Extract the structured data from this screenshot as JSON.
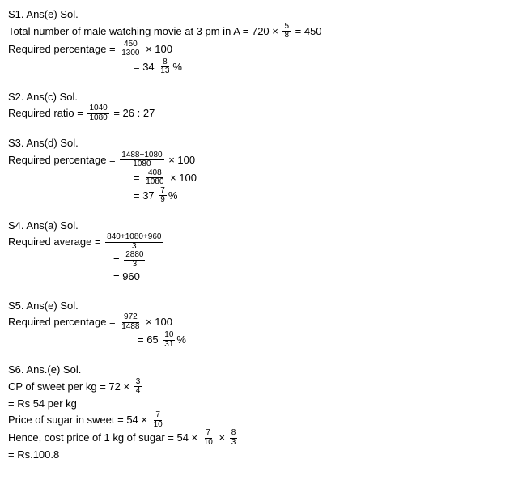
{
  "s1": {
    "header": "S1.  Ans(e) Sol.",
    "line1_a": "Total number of male watching movie at 3 pm in A = 720 × ",
    "f1n": "5",
    "f1d": "8",
    "line1_b": " = 450",
    "line2_a": "Required percentage = ",
    "f2n": "450",
    "f2d": "1300",
    "line2_b": " × 100",
    "line3_a": "= 34 ",
    "f3n": "8",
    "f3d": "13",
    "line3_b": "%"
  },
  "s2": {
    "header": "S2. Ans(c) Sol.",
    "line1_a": "Required ratio = ",
    "f1n": "1040",
    "f1d": "1080",
    "line1_b": " = 26 : 27"
  },
  "s3": {
    "header": "S3. Ans(d) Sol.",
    "line1_a": "Required percentage = ",
    "f1n": "1488−1080",
    "f1d": "1080",
    "line1_b": " × 100",
    "line2_a": "= ",
    "f2n": "408",
    "f2d": "1080",
    "line2_b": " × 100",
    "line3_a": "= 37 ",
    "f3n": "7",
    "f3d": "9",
    "line3_b": "%"
  },
  "s4": {
    "header": "S4. Ans(a) Sol.",
    "line1_a": "Required average = ",
    "f1n": "840+1080+960",
    "f1d": "3",
    "line2_a": "= ",
    "f2n": "2880",
    "f2d": "3",
    "line3_a": "= 960"
  },
  "s5": {
    "header": "S5. Ans(e) Sol.",
    "line1_a": "Required percentage = ",
    "f1n": "972",
    "f1d": "1488",
    "line1_b": " × 100",
    "line2_a": "= 65 ",
    "f2n": "10",
    "f2d": "31",
    "line2_b": "%"
  },
  "s6": {
    "header": "S6. Ans.(e) Sol.",
    "line1_a": "CP of sweet per kg = 72 × ",
    "f1n": "3",
    "f1d": "4",
    "line2": "= Rs 54 per kg",
    "line3_a": "Price of sugar in sweet = 54 × ",
    "f3n": "7",
    "f3d": "10",
    "line4_a": "Hence, cost price of 1 kg of sugar = 54 × ",
    "f4n": "7",
    "f4d": "10",
    "line4_b": " × ",
    "f5n": "8",
    "f5d": "3",
    "line5": "= Rs.100.8"
  }
}
